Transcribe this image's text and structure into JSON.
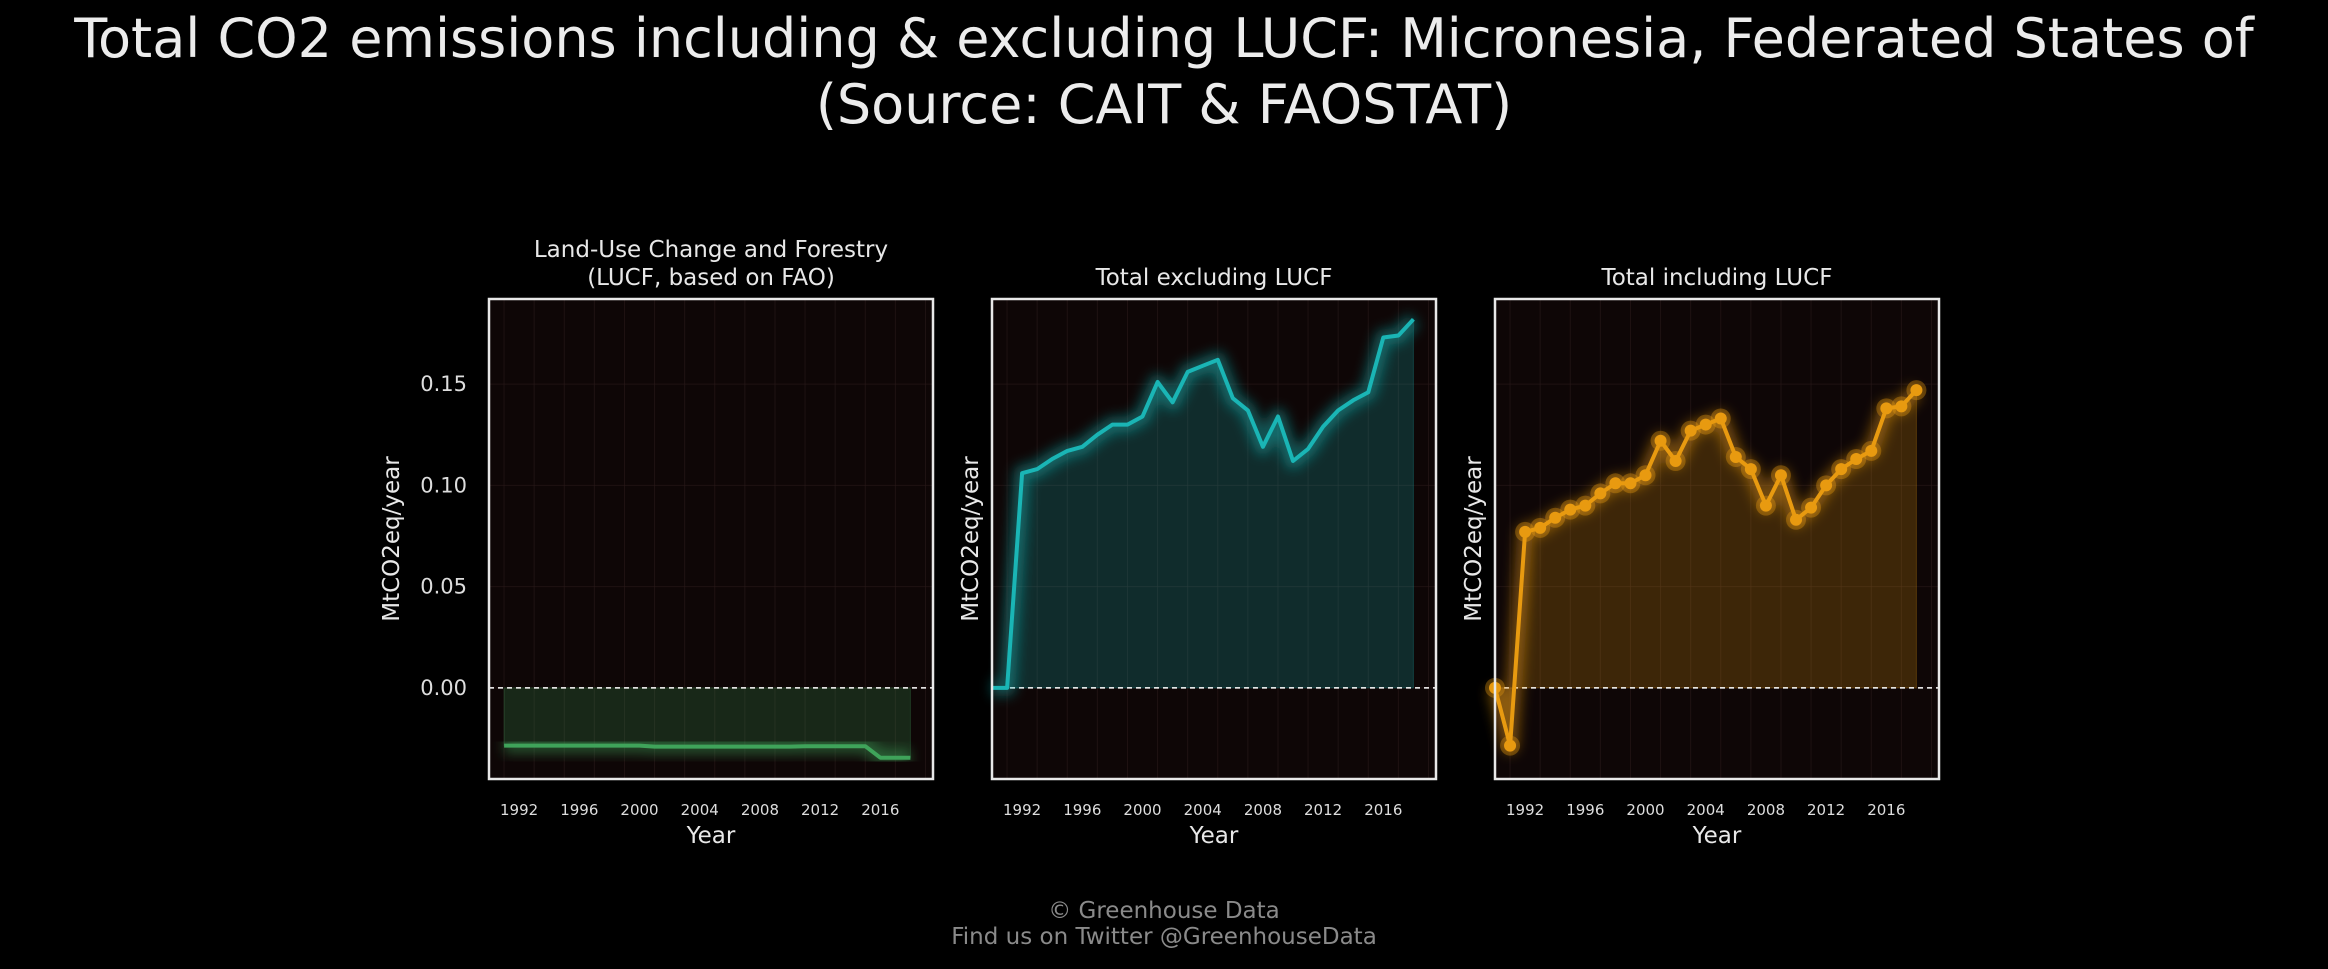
{
  "title": {
    "line1": "Total CO2 emissions including & excluding LUCF: Micronesia, Federated States of",
    "line2": "(Source: CAIT & FAOSTAT)"
  },
  "footer": {
    "line1": "© Greenhouse Data",
    "line2": "Find us on Twitter @GreenhouseData"
  },
  "colors": {
    "background": "#000000",
    "plot_background": "#0e0606",
    "lucf": "#3fa35a",
    "excluding": "#1ab5b5",
    "including": "#e89a10"
  },
  "chart_data": [
    {
      "type": "area",
      "title_lines": [
        "Land-Use Change and Forestry",
        "(LUCF, based on FAO)"
      ],
      "xlabel": "Year",
      "ylabel": "MtCO2eq/year",
      "xticks": [
        1992,
        1996,
        2000,
        2004,
        2008,
        2012,
        2016
      ],
      "yticks": [
        0.0,
        0.05,
        0.1,
        0.15
      ],
      "ytick_labels": [
        "0.00",
        "0.05",
        "0.10",
        "0.15"
      ],
      "xlim": [
        1990,
        2019.5
      ],
      "ylim": [
        -0.045,
        0.192
      ],
      "show_yticks": true,
      "markers": false,
      "color": "#3fa35a",
      "x": [
        1991,
        1992,
        1993,
        1994,
        1995,
        1996,
        1997,
        1998,
        1999,
        2000,
        2001,
        2002,
        2003,
        2004,
        2005,
        2006,
        2007,
        2008,
        2009,
        2010,
        2011,
        2012,
        2013,
        2014,
        2015,
        2016,
        2017,
        2018
      ],
      "y": [
        -0.0285,
        -0.0285,
        -0.0285,
        -0.0285,
        -0.0285,
        -0.0285,
        -0.0285,
        -0.0285,
        -0.0285,
        -0.0285,
        -0.029,
        -0.029,
        -0.029,
        -0.029,
        -0.029,
        -0.029,
        -0.029,
        -0.029,
        -0.029,
        -0.029,
        -0.0288,
        -0.0288,
        -0.0288,
        -0.0288,
        -0.0288,
        -0.0345,
        -0.0345,
        -0.0345
      ]
    },
    {
      "type": "area",
      "title_lines": [
        "Total excluding LUCF"
      ],
      "xlabel": "Year",
      "ylabel": "MtCO2eq/year",
      "xticks": [
        1992,
        1996,
        2000,
        2004,
        2008,
        2012,
        2016
      ],
      "yticks": [
        0.0,
        0.05,
        0.1,
        0.15
      ],
      "xlim": [
        1990,
        2019.5
      ],
      "ylim": [
        -0.045,
        0.192
      ],
      "show_yticks": false,
      "markers": false,
      "color": "#1ab5b5",
      "x": [
        1990,
        1991,
        1992,
        1993,
        1994,
        1995,
        1996,
        1997,
        1998,
        1999,
        2000,
        2001,
        2002,
        2003,
        2004,
        2005,
        2006,
        2007,
        2008,
        2009,
        2010,
        2011,
        2012,
        2013,
        2014,
        2015,
        2016,
        2017,
        2018
      ],
      "y": [
        0.0,
        0.0,
        0.106,
        0.108,
        0.113,
        0.117,
        0.119,
        0.125,
        0.13,
        0.13,
        0.134,
        0.151,
        0.141,
        0.156,
        0.159,
        0.162,
        0.143,
        0.137,
        0.119,
        0.134,
        0.112,
        0.118,
        0.129,
        0.137,
        0.142,
        0.146,
        0.173,
        0.174,
        0.182
      ]
    },
    {
      "type": "area",
      "title_lines": [
        "Total including LUCF"
      ],
      "xlabel": "Year",
      "ylabel": "MtCO2eq/year",
      "xticks": [
        1992,
        1996,
        2000,
        2004,
        2008,
        2012,
        2016
      ],
      "yticks": [
        0.0,
        0.05,
        0.1,
        0.15
      ],
      "xlim": [
        1990,
        2019.5
      ],
      "ylim": [
        -0.045,
        0.192
      ],
      "show_yticks": false,
      "markers": true,
      "color": "#e89a10",
      "x": [
        1990,
        1991,
        1992,
        1993,
        1994,
        1995,
        1996,
        1997,
        1998,
        1999,
        2000,
        2001,
        2002,
        2003,
        2004,
        2005,
        2006,
        2007,
        2008,
        2009,
        2010,
        2011,
        2012,
        2013,
        2014,
        2015,
        2016,
        2017,
        2018
      ],
      "y": [
        0.0,
        -0.0285,
        0.077,
        0.079,
        0.084,
        0.088,
        0.09,
        0.096,
        0.101,
        0.101,
        0.105,
        0.122,
        0.112,
        0.127,
        0.13,
        0.133,
        0.114,
        0.108,
        0.09,
        0.105,
        0.083,
        0.089,
        0.1,
        0.108,
        0.113,
        0.117,
        0.138,
        0.139,
        0.147
      ]
    }
  ]
}
